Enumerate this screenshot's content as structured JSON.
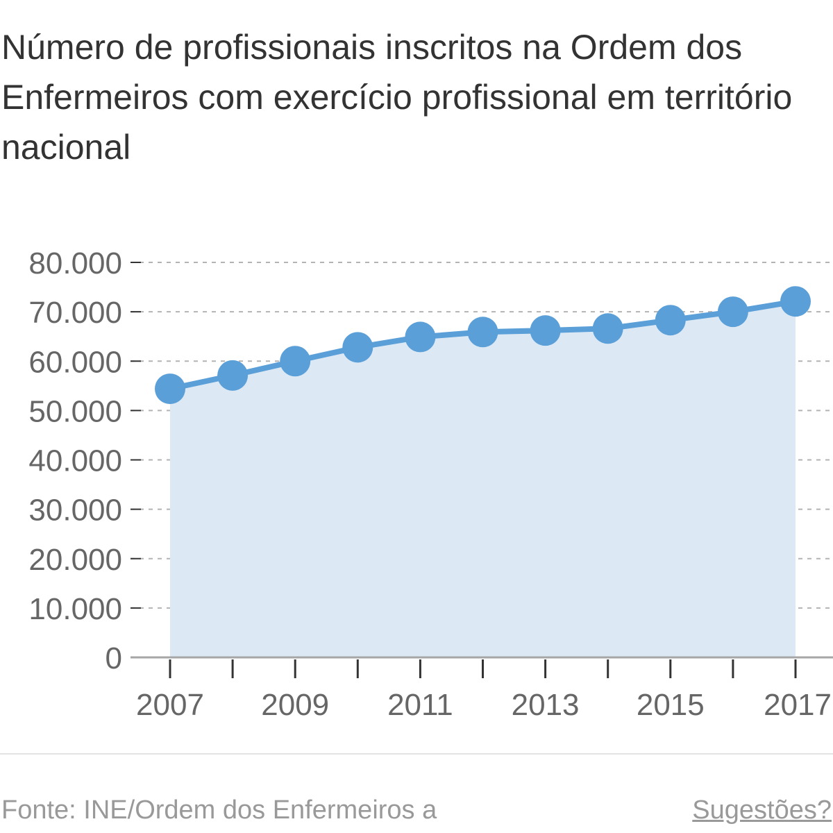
{
  "chart_data": {
    "type": "line",
    "title": "Número de profissionais inscritos na Ordem dos Enfermeiros com exercício profissional em território nacional",
    "xlabel": "",
    "ylabel": "",
    "x": [
      2007,
      2008,
      2009,
      2010,
      2011,
      2012,
      2013,
      2014,
      2015,
      2016,
      2017
    ],
    "x_tick_labels": [
      "2007",
      "2009",
      "2011",
      "2013",
      "2015",
      "2017"
    ],
    "series": [
      {
        "values": [
          54400,
          57100,
          60000,
          62800,
          64900,
          65900,
          66200,
          66600,
          68300,
          70000,
          72100
        ]
      }
    ],
    "ylim": [
      0,
      80000
    ],
    "y_ticks": [
      0,
      10000,
      20000,
      30000,
      40000,
      50000,
      60000,
      70000,
      80000
    ],
    "y_tick_labels": [
      "0",
      "10.000",
      "20.000",
      "30.000",
      "40.000",
      "50.000",
      "60.000",
      "70.000",
      "80.000"
    ],
    "grid": true,
    "area_fill": true,
    "line_color": "#5a9fd8",
    "area_color": "#dce9f5"
  },
  "footer": {
    "source": "Fonte: INE/Ordem dos Enfermeiros a",
    "suggestions": "Sugestões?"
  }
}
